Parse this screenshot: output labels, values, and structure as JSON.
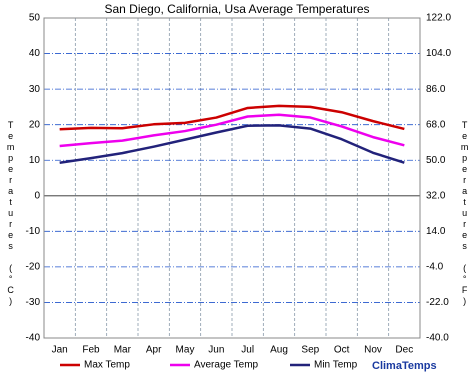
{
  "chart_data": {
    "type": "line",
    "title": "San Diego, California, Usa Average Temperatures",
    "y_label": "Temperatures (°C)",
    "y2_label": "Temperatures (°F)",
    "watermark": "ClimaTemps",
    "categories": [
      "Jan",
      "Feb",
      "Mar",
      "Apr",
      "May",
      "Jun",
      "Jul",
      "Aug",
      "Sep",
      "Oct",
      "Nov",
      "Dec"
    ],
    "series": [
      {
        "name": "Max Temp",
        "color": "#cc0000",
        "values": [
          18.7,
          19.1,
          19.0,
          20.1,
          20.5,
          22.0,
          24.7,
          25.3,
          25.0,
          23.5,
          21.0,
          18.8
        ]
      },
      {
        "name": "Average Temp",
        "color": "#ee00ee",
        "values": [
          14.0,
          14.8,
          15.5,
          17.0,
          18.2,
          20.0,
          22.3,
          22.8,
          22.0,
          19.5,
          16.5,
          14.2
        ]
      },
      {
        "name": "Min Temp",
        "color": "#22227a",
        "values": [
          9.3,
          10.6,
          12.0,
          13.8,
          15.8,
          17.8,
          19.7,
          19.8,
          18.9,
          15.9,
          12.1,
          9.3
        ]
      }
    ],
    "ylim": [
      -40,
      50
    ],
    "yticks": [
      -40,
      -30,
      -20,
      -10,
      0,
      10,
      20,
      30,
      40,
      50
    ],
    "y2lim": [
      -40,
      122
    ],
    "y2ticks": [
      {
        "value": -40,
        "label": "-40.0"
      },
      {
        "value": -22,
        "label": "-22.0"
      },
      {
        "value": -4,
        "label": "-4.0"
      },
      {
        "value": 14,
        "label": "14.0"
      },
      {
        "value": 32,
        "label": "32.0"
      },
      {
        "value": 50,
        "label": "50.0"
      },
      {
        "value": 68,
        "label": "68.0"
      },
      {
        "value": 86,
        "label": "86.0"
      },
      {
        "value": 104,
        "label": "104.0"
      },
      {
        "value": 122,
        "label": "122.0"
      }
    ],
    "grid": true
  }
}
